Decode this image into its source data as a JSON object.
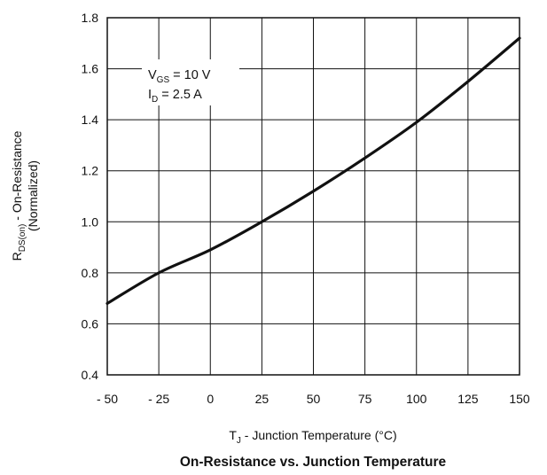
{
  "chart_data": {
    "type": "line",
    "title": "On-Resistance vs. Junction Temperature",
    "xlabel": {
      "main": "T",
      "sub": "J",
      "rest": " - Junction Temperature (°C)"
    },
    "ylabel": {
      "line1_main": "R",
      "line1_sub": "DS(on)",
      "line1_rest": " - On-Resistance",
      "line2": "(Normalized)"
    },
    "xlim": [
      -50,
      150
    ],
    "ylim": [
      0.4,
      1.8
    ],
    "grid": true,
    "x_ticks": [
      -50,
      -25,
      0,
      25,
      50,
      75,
      100,
      125,
      150
    ],
    "x_tick_labels": [
      "- 50",
      "- 25",
      "0",
      "25",
      "50",
      "75",
      "100",
      "125",
      "150"
    ],
    "y_ticks": [
      0.4,
      0.6,
      0.8,
      1.0,
      1.2,
      1.4,
      1.6,
      1.8
    ],
    "y_tick_labels": [
      "0.4",
      "0.6",
      "0.8",
      "1.0",
      "1.2",
      "1.4",
      "1.6",
      "1.8"
    ],
    "annotation": {
      "line1": {
        "main": "V",
        "sub": "GS",
        "rest": " = 10 V"
      },
      "line2": {
        "main": "I",
        "sub": "D",
        "rest": " = 2.5 A"
      }
    },
    "series": [
      {
        "x": [
          -50,
          -25,
          0,
          25,
          50,
          75,
          100,
          125,
          150
        ],
        "y": [
          0.68,
          0.8,
          0.89,
          1.0,
          1.12,
          1.25,
          1.39,
          1.55,
          1.72
        ]
      }
    ]
  }
}
